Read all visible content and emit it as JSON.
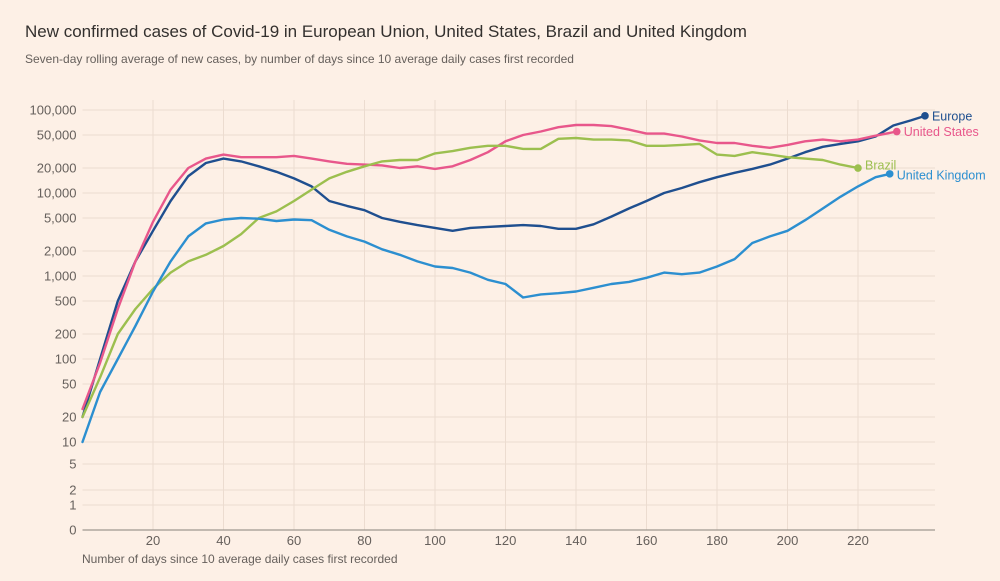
{
  "title": "New confirmed cases of Covid-19 in European Union, United States, Brazil and United Kingdom",
  "subtitle": "Seven-day rolling average of new cases, by number of days since 10 average daily cases first recorded",
  "chart_data": {
    "type": "line",
    "title": "New confirmed cases of Covid-19 in European Union, United States, Brazil and United Kingdom",
    "subtitle": "Seven-day rolling average of new cases, by number of days since 10 average daily cases first recorded",
    "xlabel": "Number of days since 10 average daily cases first recorded",
    "ylabel": "",
    "yscale": "log",
    "xlim": [
      0,
      242
    ],
    "ylim": [
      0,
      100000
    ],
    "grid": true,
    "xticks": [
      20,
      40,
      60,
      80,
      100,
      120,
      140,
      160,
      180,
      200,
      220
    ],
    "yticks": [
      {
        "value": 0,
        "label": "0"
      },
      {
        "value": 1,
        "label": "1"
      },
      {
        "value": 2,
        "label": "2"
      },
      {
        "value": 5,
        "label": "5"
      },
      {
        "value": 10,
        "label": "10"
      },
      {
        "value": 20,
        "label": "20"
      },
      {
        "value": 50,
        "label": "50"
      },
      {
        "value": 100,
        "label": "100"
      },
      {
        "value": 200,
        "label": "200"
      },
      {
        "value": 500,
        "label": "500"
      },
      {
        "value": 1000,
        "label": "1,000"
      },
      {
        "value": 2000,
        "label": "2,000"
      },
      {
        "value": 5000,
        "label": "5,000"
      },
      {
        "value": 10000,
        "label": "10,000"
      },
      {
        "value": 20000,
        "label": "20,000"
      },
      {
        "value": 50000,
        "label": "50,000"
      },
      {
        "value": 100000,
        "label": "100,000"
      }
    ],
    "series": [
      {
        "name": "European Union",
        "label": "Europe",
        "color": "#1f4f8f",
        "x": [
          0,
          5,
          10,
          15,
          20,
          25,
          30,
          35,
          40,
          45,
          50,
          55,
          60,
          65,
          70,
          75,
          80,
          85,
          90,
          95,
          100,
          105,
          110,
          115,
          120,
          125,
          130,
          135,
          140,
          145,
          150,
          155,
          160,
          165,
          170,
          175,
          180,
          185,
          190,
          195,
          200,
          205,
          210,
          215,
          220,
          225,
          230,
          235,
          239
        ],
        "values": [
          20,
          100,
          500,
          1500,
          3500,
          8000,
          16000,
          23000,
          26000,
          24000,
          21000,
          18000,
          15000,
          12000,
          8000,
          7000,
          6200,
          5000,
          4500,
          4100,
          3800,
          3500,
          3800,
          3900,
          4000,
          4100,
          4000,
          3700,
          3700,
          4200,
          5200,
          6500,
          8000,
          10000,
          11500,
          13500,
          15500,
          17500,
          19500,
          22000,
          26000,
          31000,
          36000,
          39000,
          42000,
          48000,
          65000,
          75000,
          85000
        ]
      },
      {
        "name": "United States",
        "label": "United States",
        "color": "#e8578b",
        "x": [
          0,
          5,
          10,
          15,
          20,
          25,
          30,
          35,
          40,
          45,
          50,
          55,
          60,
          65,
          70,
          75,
          80,
          85,
          90,
          95,
          100,
          105,
          110,
          115,
          120,
          125,
          130,
          135,
          140,
          145,
          150,
          155,
          160,
          165,
          170,
          175,
          180,
          185,
          190,
          195,
          200,
          205,
          210,
          215,
          220,
          225,
          231
        ],
        "values": [
          25,
          90,
          400,
          1500,
          4500,
          11000,
          20000,
          26000,
          29000,
          27000,
          27000,
          27000,
          28000,
          26000,
          24000,
          22500,
          22000,
          21500,
          20000,
          21000,
          19500,
          21000,
          25000,
          31000,
          42000,
          50000,
          55000,
          62000,
          66000,
          66000,
          64000,
          58000,
          52000,
          52000,
          48000,
          43000,
          40000,
          40000,
          37000,
          35000,
          38000,
          42000,
          44000,
          42000,
          44000,
          49000,
          55000
        ]
      },
      {
        "name": "Brazil",
        "label": "Brazil",
        "color": "#9cbf4f",
        "x": [
          0,
          5,
          10,
          15,
          20,
          25,
          30,
          35,
          40,
          45,
          50,
          55,
          60,
          65,
          70,
          75,
          80,
          85,
          90,
          95,
          100,
          105,
          110,
          115,
          120,
          125,
          130,
          135,
          140,
          145,
          150,
          155,
          160,
          165,
          170,
          175,
          180,
          185,
          190,
          195,
          200,
          205,
          210,
          215,
          220
        ],
        "values": [
          20,
          60,
          200,
          400,
          700,
          1100,
          1500,
          1800,
          2300,
          3200,
          5000,
          6000,
          8000,
          11000,
          15000,
          18000,
          21000,
          24000,
          25000,
          25000,
          30000,
          32000,
          35000,
          37000,
          37000,
          34000,
          34000,
          45000,
          46000,
          44000,
          44000,
          43000,
          37000,
          37000,
          38000,
          39000,
          29000,
          28000,
          31000,
          29000,
          27000,
          26000,
          25000,
          22000,
          20000
        ]
      },
      {
        "name": "United Kingdom",
        "label": "United Kingdom",
        "color": "#2c8fd0",
        "x": [
          0,
          5,
          10,
          15,
          20,
          25,
          30,
          35,
          40,
          45,
          50,
          55,
          60,
          65,
          70,
          75,
          80,
          85,
          90,
          95,
          100,
          105,
          110,
          115,
          120,
          125,
          130,
          135,
          140,
          145,
          150,
          155,
          160,
          165,
          170,
          175,
          180,
          185,
          190,
          195,
          200,
          205,
          210,
          215,
          220,
          225,
          229
        ],
        "values": [
          10,
          40,
          100,
          250,
          650,
          1500,
          3000,
          4300,
          4800,
          5000,
          4900,
          4600,
          4800,
          4700,
          3600,
          3000,
          2600,
          2100,
          1800,
          1500,
          1300,
          1250,
          1100,
          900,
          800,
          550,
          600,
          620,
          650,
          720,
          800,
          850,
          950,
          1100,
          1050,
          1100,
          1300,
          1600,
          2500,
          3000,
          3500,
          4700,
          6500,
          9000,
          12000,
          15500,
          17000
        ]
      }
    ]
  }
}
